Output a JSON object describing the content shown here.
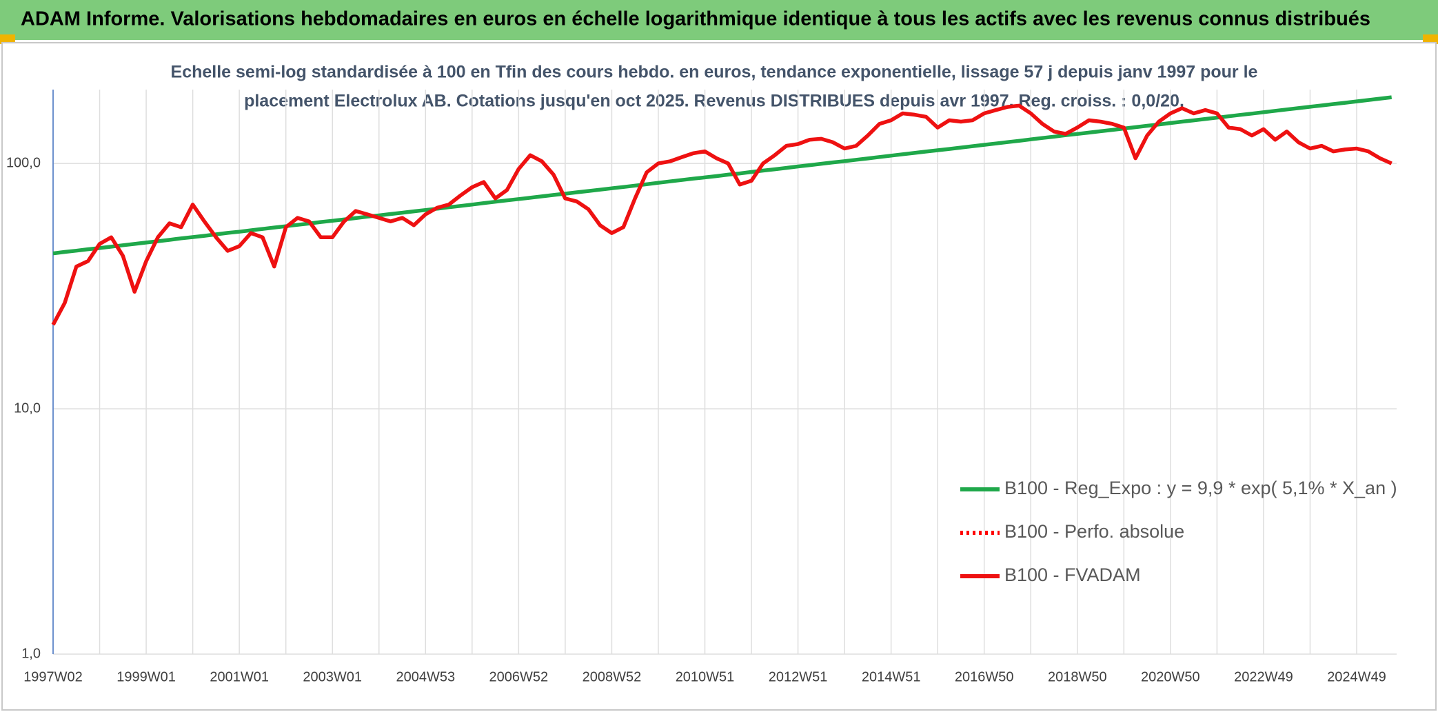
{
  "chart_data": {
    "type": "line",
    "title": "ADAM Informe. Valorisations hebdomadaires en euros en échelle logarithmique identique à tous les actifs avec les revenus connus distribués",
    "subtitle": [
      "Echelle semi-log standardisée à 100 en Tfin des cours hebdo. en euros, tendance exponentielle, lissage 57 j depuis janv 1997 pour le",
      "placement Electrolux AB. Cotations jusqu'en oct 2025. Revenus DISTRIBUES depuis avr 1997. Reg. croiss. : 0,0/20."
    ],
    "log_scale": true,
    "grid": true,
    "ylim": [
      1,
      200
    ],
    "yticks": [
      {
        "value": 1,
        "label": "1,0"
      },
      {
        "value": 10,
        "label": "10,0"
      },
      {
        "value": 100,
        "label": "100,0"
      }
    ],
    "categories": [
      "1997W02",
      null,
      null,
      null,
      null,
      null,
      null,
      null,
      "1999W01",
      null,
      null,
      null,
      null,
      null,
      null,
      null,
      "2001W01",
      null,
      null,
      null,
      null,
      null,
      null,
      null,
      "2003W01",
      null,
      null,
      null,
      null,
      null,
      null,
      null,
      "2004W53",
      null,
      null,
      null,
      null,
      null,
      null,
      null,
      "2006W52",
      null,
      null,
      null,
      null,
      null,
      null,
      null,
      "2008W52",
      null,
      null,
      null,
      null,
      null,
      null,
      null,
      "2010W51",
      null,
      null,
      null,
      null,
      null,
      null,
      null,
      "2012W51",
      null,
      null,
      null,
      null,
      null,
      null,
      null,
      "2014W51",
      null,
      null,
      null,
      null,
      null,
      null,
      null,
      "2016W50",
      null,
      null,
      null,
      null,
      null,
      null,
      null,
      "2018W50",
      null,
      null,
      null,
      null,
      null,
      null,
      null,
      "2020W50",
      null,
      null,
      null,
      null,
      null,
      null,
      null,
      "2022W49",
      null,
      null,
      null,
      null,
      null,
      null,
      null,
      "2024W49",
      null,
      null,
      null
    ],
    "series": [
      {
        "name": "B100 - Reg_Expo : y = 9,9 * exp( 5,1% *  X_an )",
        "color": "#1fa84a",
        "style": "solid",
        "values": [
          43.0,
          43.6,
          44.1,
          44.7,
          45.2,
          45.8,
          46.4,
          47.0,
          47.6,
          48.2,
          48.8,
          49.5,
          50.1,
          50.7,
          51.4,
          52.1,
          52.7,
          53.4,
          54.1,
          54.8,
          55.5,
          56.2,
          56.9,
          57.7,
          58.4,
          59.1,
          59.9,
          60.7,
          61.4,
          62.2,
          63.0,
          63.8,
          64.6,
          65.4,
          66.3,
          67.1,
          68.0,
          68.9,
          69.8,
          70.7,
          71.6,
          72.5,
          73.4,
          74.4,
          75.3,
          76.3,
          77.2,
          78.2,
          79.2,
          80.2,
          81.2,
          82.3,
          83.4,
          84.5,
          85.6,
          86.7,
          87.7,
          88.8,
          90.0,
          91.1,
          92.3,
          93.5,
          94.7,
          95.9,
          97.2,
          98.4,
          99.7,
          101.0,
          102.2,
          103.5,
          104.8,
          106.2,
          107.6,
          109.0,
          110.4,
          111.8,
          113.2,
          114.6,
          116.1,
          117.6,
          119.1,
          120.6,
          122.2,
          123.7,
          125.4,
          127.0,
          128.6,
          130.3,
          131.9,
          133.6,
          135.3,
          137.0,
          138.8,
          140.6,
          142.4,
          144.2,
          146.1,
          148.0,
          149.9,
          151.8,
          153.7,
          155.7,
          157.7,
          159.7,
          161.8,
          163.9,
          166.0,
          168.1,
          170.2,
          172.4,
          174.6,
          176.8,
          179.1,
          181.4,
          183.7,
          186.1
        ]
      },
      {
        "name": "B100 - Perfo. absolue",
        "color": "#ff0000",
        "style": "dotted"
      },
      {
        "name": "B100 - FVADAM",
        "color": "#ee1111",
        "style": "solid",
        "values": [
          22,
          27,
          38,
          40,
          47,
          50,
          42,
          30,
          40,
          50,
          57,
          55,
          68,
          58,
          50,
          44,
          46,
          52,
          50,
          38,
          55,
          60,
          58,
          50,
          50,
          58,
          64,
          62,
          60,
          58,
          60,
          56,
          62,
          66,
          68,
          74,
          80,
          84,
          72,
          78,
          95,
          108,
          102,
          90,
          72,
          70,
          65,
          56,
          52,
          55,
          72,
          92,
          100,
          102,
          106,
          110,
          112,
          105,
          100,
          82,
          85,
          100,
          108,
          118,
          120,
          125,
          126,
          122,
          115,
          118,
          130,
          145,
          150,
          160,
          158,
          155,
          140,
          150,
          148,
          150,
          160,
          165,
          170,
          172,
          160,
          145,
          135,
          132,
          140,
          150,
          148,
          145,
          140,
          105,
          130,
          148,
          160,
          168,
          160,
          165,
          160,
          140,
          138,
          130,
          138,
          125,
          135,
          122,
          115,
          118,
          112,
          114,
          115,
          112,
          105,
          100
        ]
      }
    ]
  }
}
